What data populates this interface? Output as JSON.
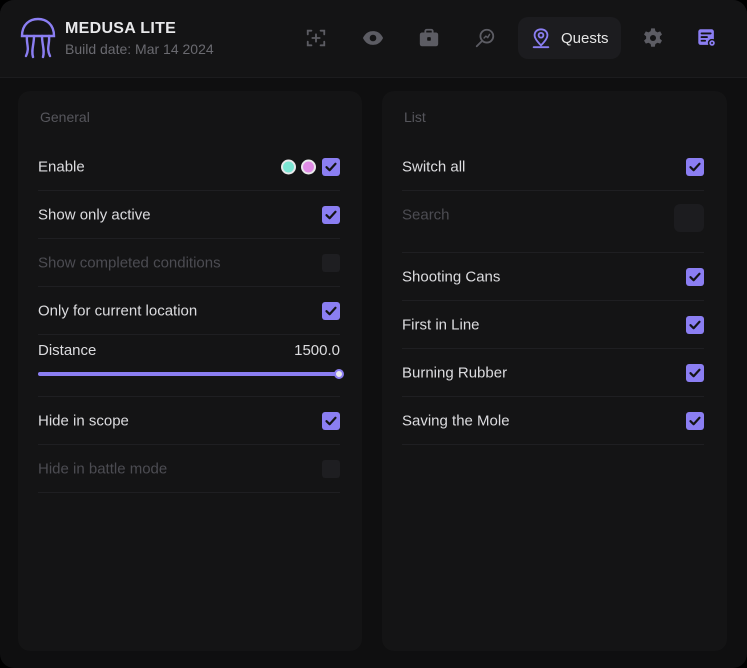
{
  "header": {
    "title": "MEDUSA LITE",
    "build_date": "Build date: Mar 14 2024",
    "nav": [
      {
        "icon": "crosshair-icon"
      },
      {
        "icon": "eye-icon"
      },
      {
        "icon": "briefcase-icon"
      },
      {
        "icon": "search-chart-icon"
      },
      {
        "icon": "location-pin-icon",
        "label": "Quests",
        "active": true
      },
      {
        "icon": "gear-icon"
      },
      {
        "icon": "settings-list-icon"
      }
    ],
    "accent": "#8b7ef2"
  },
  "general": {
    "title": "General",
    "enable": {
      "label": "Enable",
      "checked": true,
      "colors": [
        "#7ce6d4",
        "#e08ce6"
      ]
    },
    "show_only_active": {
      "label": "Show only active",
      "checked": true
    },
    "show_completed": {
      "label": "Show completed conditions",
      "checked": false
    },
    "only_current_location": {
      "label": "Only for current location",
      "checked": true
    },
    "distance": {
      "label": "Distance",
      "value": "1500.0",
      "fraction": 1.0
    },
    "hide_in_scope": {
      "label": "Hide in scope",
      "checked": true
    },
    "hide_in_battle": {
      "label": "Hide in battle mode",
      "checked": false
    }
  },
  "list": {
    "title": "List",
    "switch_all": {
      "label": "Switch all",
      "checked": true
    },
    "search": {
      "placeholder": "Search"
    },
    "items": [
      {
        "label": "Shooting Cans",
        "checked": true
      },
      {
        "label": "First in Line",
        "checked": true
      },
      {
        "label": "Burning Rubber",
        "checked": true
      },
      {
        "label": "Saving the Mole",
        "checked": true
      }
    ]
  }
}
